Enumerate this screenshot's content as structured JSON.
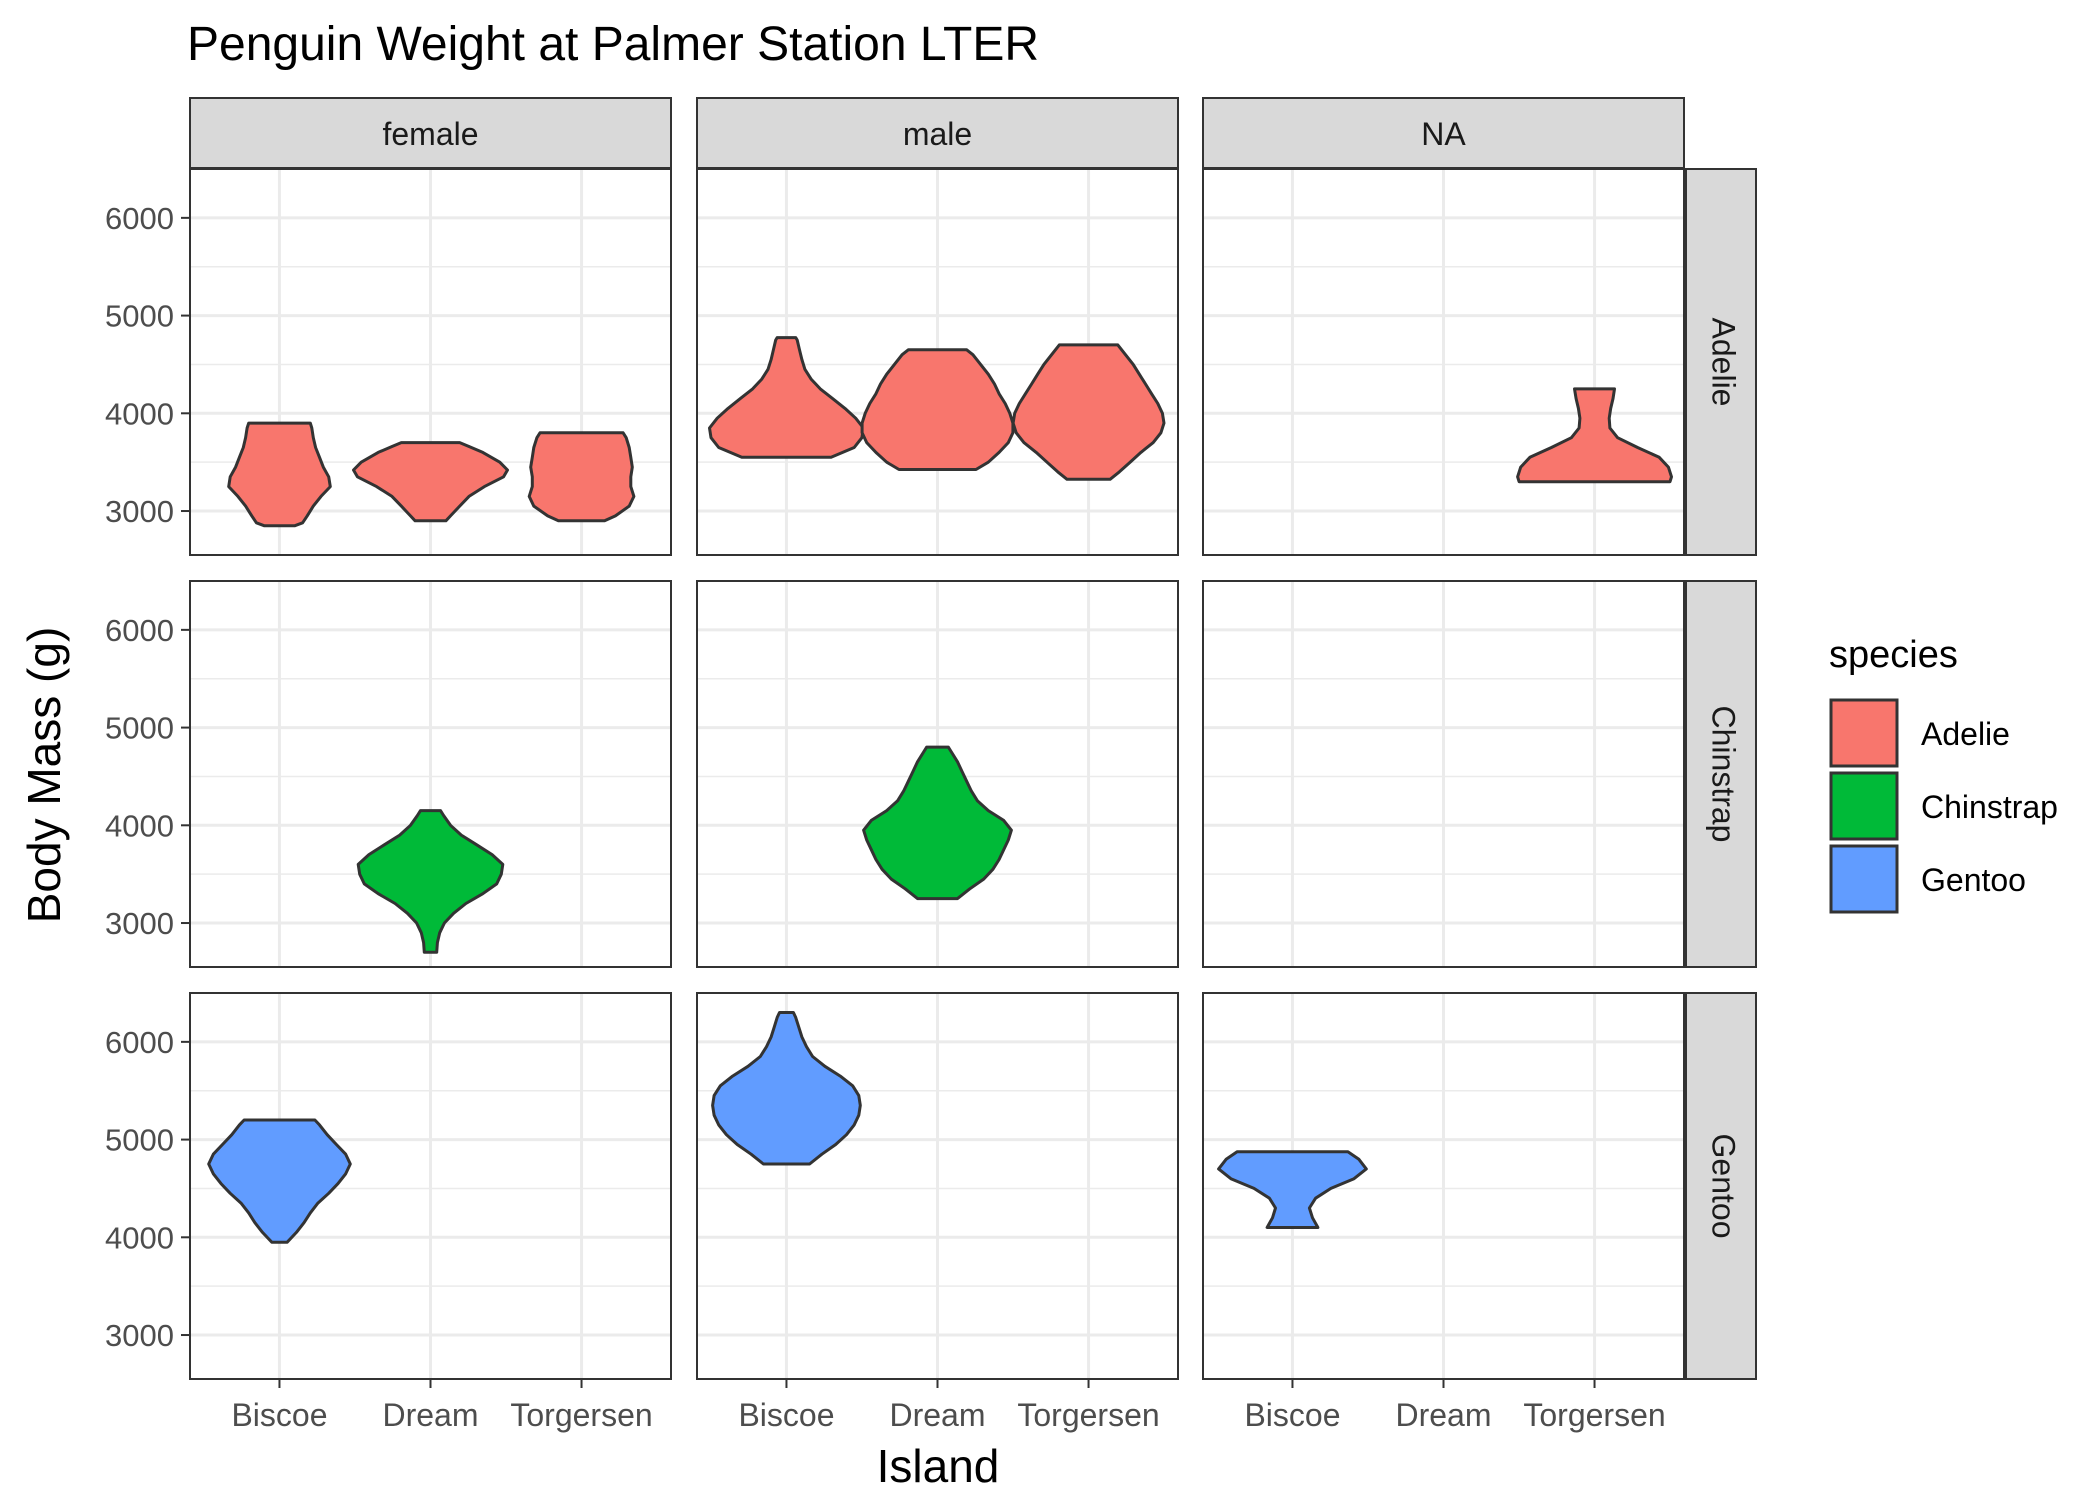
{
  "chart_data": {
    "type": "violin",
    "title": "Penguin Weight at Palmer Station LTER",
    "xlabel": "Island",
    "ylabel": "Body Mass (g)",
    "ylim": [
      2550,
      6500
    ],
    "yticks": [
      3000,
      4000,
      5000,
      6000
    ],
    "columns": [
      "female",
      "male",
      "NA"
    ],
    "rows": [
      "Adelie",
      "Chinstrap",
      "Gentoo"
    ],
    "categories": [
      "Biscoe",
      "Dream",
      "Torgersen"
    ],
    "legend": {
      "title": "species",
      "position": "right",
      "entries": [
        {
          "label": "Adelie",
          "color": "#F8766D"
        },
        {
          "label": "Chinstrap",
          "color": "#00BA38"
        },
        {
          "label": "Gentoo",
          "color": "#619CFF"
        }
      ]
    },
    "grid": true,
    "outline_color": "#333333",
    "violins": [
      {
        "sex": "female",
        "species": "Adelie",
        "island": "Biscoe",
        "profile": [
          [
            2850,
            0.2
          ],
          [
            2880,
            0.3
          ],
          [
            2950,
            0.36
          ],
          [
            3050,
            0.44
          ],
          [
            3150,
            0.54
          ],
          [
            3250,
            0.66
          ],
          [
            3350,
            0.64
          ],
          [
            3450,
            0.57
          ],
          [
            3550,
            0.52
          ],
          [
            3650,
            0.47
          ],
          [
            3750,
            0.44
          ],
          [
            3850,
            0.42
          ],
          [
            3900,
            0.4
          ]
        ]
      },
      {
        "sex": "female",
        "species": "Adelie",
        "island": "Dream",
        "profile": [
          [
            2900,
            0.2
          ],
          [
            2950,
            0.26
          ],
          [
            3050,
            0.38
          ],
          [
            3150,
            0.5
          ],
          [
            3250,
            0.7
          ],
          [
            3350,
            0.95
          ],
          [
            3420,
            1.0
          ],
          [
            3500,
            0.9
          ],
          [
            3600,
            0.68
          ],
          [
            3660,
            0.5
          ],
          [
            3700,
            0.38
          ]
        ]
      },
      {
        "sex": "female",
        "species": "Adelie",
        "island": "Torgersen",
        "profile": [
          [
            2900,
            0.3
          ],
          [
            2950,
            0.44
          ],
          [
            3050,
            0.62
          ],
          [
            3150,
            0.68
          ],
          [
            3250,
            0.64
          ],
          [
            3350,
            0.64
          ],
          [
            3450,
            0.66
          ],
          [
            3550,
            0.64
          ],
          [
            3650,
            0.62
          ],
          [
            3750,
            0.58
          ],
          [
            3800,
            0.54
          ]
        ]
      },
      {
        "sex": "male",
        "species": "Adelie",
        "island": "Biscoe",
        "profile": [
          [
            3550,
            0.58
          ],
          [
            3650,
            0.88
          ],
          [
            3750,
            0.98
          ],
          [
            3850,
            1.0
          ],
          [
            3950,
            0.9
          ],
          [
            4050,
            0.76
          ],
          [
            4150,
            0.6
          ],
          [
            4250,
            0.44
          ],
          [
            4350,
            0.32
          ],
          [
            4450,
            0.24
          ],
          [
            4550,
            0.2
          ],
          [
            4650,
            0.17
          ],
          [
            4750,
            0.14
          ],
          [
            4775,
            0.12
          ]
        ]
      },
      {
        "sex": "male",
        "species": "Adelie",
        "island": "Dream",
        "profile": [
          [
            3425,
            0.5
          ],
          [
            3500,
            0.66
          ],
          [
            3600,
            0.8
          ],
          [
            3700,
            0.92
          ],
          [
            3800,
            0.98
          ],
          [
            3900,
            0.98
          ],
          [
            4000,
            0.94
          ],
          [
            4100,
            0.88
          ],
          [
            4200,
            0.8
          ],
          [
            4300,
            0.74
          ],
          [
            4400,
            0.66
          ],
          [
            4500,
            0.56
          ],
          [
            4600,
            0.46
          ],
          [
            4650,
            0.38
          ]
        ]
      },
      {
        "sex": "male",
        "species": "Adelie",
        "island": "Torgersen",
        "profile": [
          [
            3325,
            0.28
          ],
          [
            3400,
            0.4
          ],
          [
            3500,
            0.54
          ],
          [
            3600,
            0.68
          ],
          [
            3700,
            0.84
          ],
          [
            3800,
            0.94
          ],
          [
            3900,
            0.98
          ],
          [
            4000,
            0.96
          ],
          [
            4100,
            0.9
          ],
          [
            4200,
            0.82
          ],
          [
            4300,
            0.74
          ],
          [
            4400,
            0.66
          ],
          [
            4500,
            0.58
          ],
          [
            4600,
            0.48
          ],
          [
            4700,
            0.38
          ]
        ]
      },
      {
        "sex": "NA",
        "species": "Adelie",
        "island": "Torgersen",
        "profile": [
          [
            3300,
            0.98
          ],
          [
            3350,
            1.0
          ],
          [
            3450,
            0.96
          ],
          [
            3550,
            0.84
          ],
          [
            3650,
            0.56
          ],
          [
            3750,
            0.3
          ],
          [
            3850,
            0.2
          ],
          [
            3950,
            0.19
          ],
          [
            4050,
            0.21
          ],
          [
            4150,
            0.24
          ],
          [
            4250,
            0.26
          ]
        ]
      },
      {
        "sex": "female",
        "species": "Chinstrap",
        "island": "Dream",
        "profile": [
          [
            2700,
            0.08
          ],
          [
            2800,
            0.09
          ],
          [
            2900,
            0.12
          ],
          [
            3000,
            0.18
          ],
          [
            3100,
            0.3
          ],
          [
            3200,
            0.46
          ],
          [
            3300,
            0.68
          ],
          [
            3400,
            0.86
          ],
          [
            3500,
            0.92
          ],
          [
            3600,
            0.94
          ],
          [
            3700,
            0.8
          ],
          [
            3800,
            0.6
          ],
          [
            3900,
            0.4
          ],
          [
            4000,
            0.26
          ],
          [
            4100,
            0.17
          ],
          [
            4150,
            0.13
          ]
        ]
      },
      {
        "sex": "male",
        "species": "Chinstrap",
        "island": "Dream",
        "profile": [
          [
            3250,
            0.26
          ],
          [
            3350,
            0.42
          ],
          [
            3450,
            0.6
          ],
          [
            3550,
            0.72
          ],
          [
            3650,
            0.8
          ],
          [
            3750,
            0.86
          ],
          [
            3850,
            0.92
          ],
          [
            3950,
            0.96
          ],
          [
            4050,
            0.86
          ],
          [
            4150,
            0.66
          ],
          [
            4250,
            0.52
          ],
          [
            4350,
            0.44
          ],
          [
            4450,
            0.38
          ],
          [
            4550,
            0.32
          ],
          [
            4650,
            0.26
          ],
          [
            4750,
            0.18
          ],
          [
            4800,
            0.14
          ]
        ]
      },
      {
        "sex": "female",
        "species": "Gentoo",
        "island": "Biscoe",
        "profile": [
          [
            3950,
            0.1
          ],
          [
            4050,
            0.22
          ],
          [
            4150,
            0.32
          ],
          [
            4250,
            0.4
          ],
          [
            4350,
            0.5
          ],
          [
            4450,
            0.64
          ],
          [
            4550,
            0.76
          ],
          [
            4650,
            0.86
          ],
          [
            4750,
            0.92
          ],
          [
            4850,
            0.86
          ],
          [
            4950,
            0.74
          ],
          [
            5050,
            0.62
          ],
          [
            5150,
            0.52
          ],
          [
            5200,
            0.46
          ]
        ]
      },
      {
        "sex": "male",
        "species": "Gentoo",
        "island": "Biscoe",
        "profile": [
          [
            4750,
            0.3
          ],
          [
            4850,
            0.46
          ],
          [
            4950,
            0.64
          ],
          [
            5050,
            0.78
          ],
          [
            5150,
            0.88
          ],
          [
            5250,
            0.94
          ],
          [
            5350,
            0.96
          ],
          [
            5450,
            0.94
          ],
          [
            5550,
            0.86
          ],
          [
            5650,
            0.7
          ],
          [
            5750,
            0.5
          ],
          [
            5850,
            0.34
          ],
          [
            5950,
            0.26
          ],
          [
            6050,
            0.2
          ],
          [
            6150,
            0.16
          ],
          [
            6250,
            0.12
          ],
          [
            6300,
            0.09
          ]
        ]
      },
      {
        "sex": "NA",
        "species": "Gentoo",
        "island": "Biscoe",
        "profile": [
          [
            4100,
            0.33
          ],
          [
            4200,
            0.26
          ],
          [
            4300,
            0.22
          ],
          [
            4400,
            0.3
          ],
          [
            4500,
            0.5
          ],
          [
            4600,
            0.8
          ],
          [
            4700,
            0.96
          ],
          [
            4800,
            0.86
          ],
          [
            4875,
            0.72
          ]
        ]
      }
    ]
  }
}
